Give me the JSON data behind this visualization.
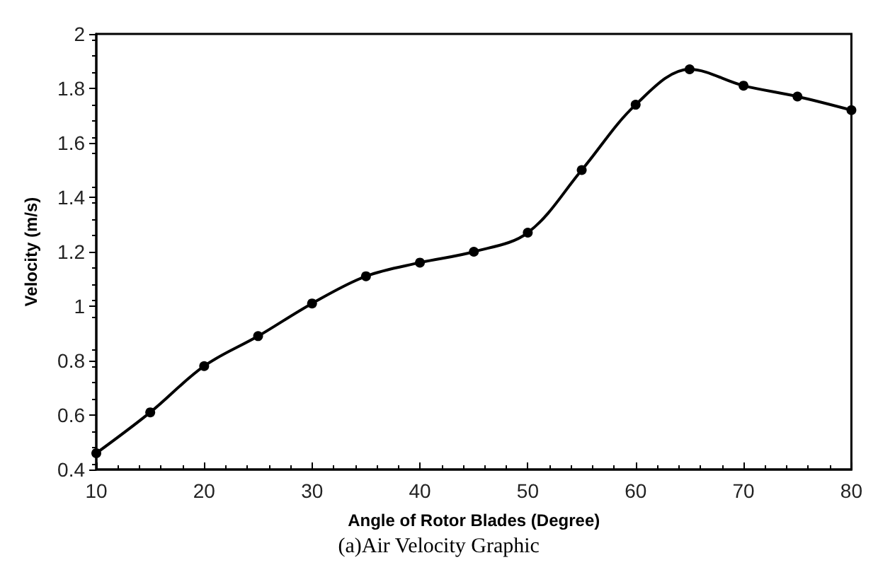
{
  "chart_data": {
    "type": "line",
    "xlabel": "Angle of Rotor Blades (Degree)",
    "ylabel": "Velocity (m/s)",
    "x": [
      10,
      15,
      20,
      25,
      30,
      35,
      40,
      45,
      50,
      55,
      60,
      65,
      70,
      75,
      80
    ],
    "series": [
      {
        "color": "#000000",
        "values": [
          0.46,
          0.61,
          0.78,
          0.89,
          1.01,
          1.11,
          1.16,
          1.2,
          1.27,
          1.5,
          1.74,
          1.87,
          1.81,
          1.77,
          1.72
        ]
      }
    ],
    "xlim": [
      10,
      80
    ],
    "xticks": [
      10,
      20,
      30,
      40,
      50,
      60,
      70,
      80
    ],
    "ylim": [
      0.4,
      2
    ],
    "yticks": [
      0.4,
      0.6,
      0.8,
      1,
      1.2,
      1.4,
      1.6,
      1.8,
      2
    ],
    "grid": false,
    "marker": "circle",
    "line_style": "solid",
    "annotations": [
      "(a)Air Velocity Graphic"
    ]
  }
}
